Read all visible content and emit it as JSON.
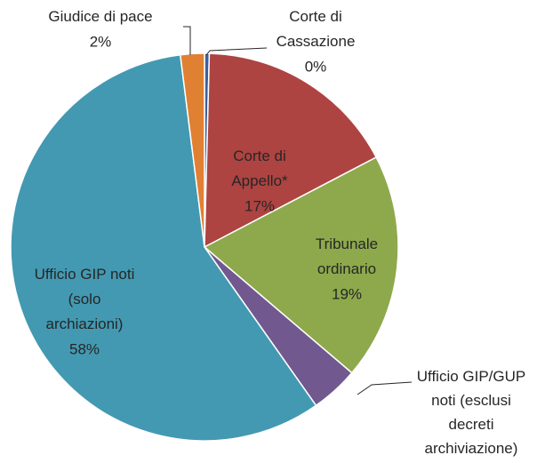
{
  "chart_data": {
    "type": "pie",
    "categories": [
      "Corte di\nCassazione",
      "Corte di\nAppello*",
      "Tribunale\nordinario",
      "Ufficio GIP/GUP\nnoti (esclusi\ndecreti\narchiviazione)",
      "Ufficio GIP noti\n(solo\narchiazioni)",
      "Giudice di pace"
    ],
    "values": [
      0.4,
      17,
      19,
      4,
      58,
      2
    ],
    "value_labels": [
      "0%",
      "17%",
      "19%",
      null,
      "58%",
      "2%"
    ],
    "colors": [
      "#3d5f9e",
      "#ad4441",
      "#8da94c",
      "#71588f",
      "#4399b1",
      "#e08033"
    ]
  }
}
